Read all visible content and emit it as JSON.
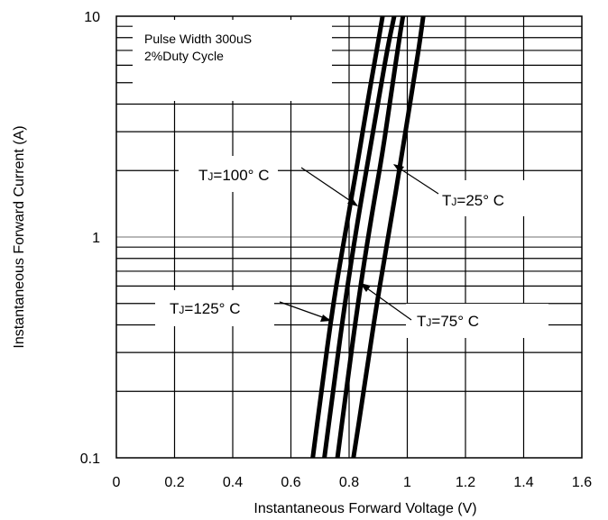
{
  "chart_data": {
    "type": "line",
    "xlabel": "Instantaneous Forward Voltage (V)",
    "ylabel": "Instantaneous Forward Current (A)",
    "xlim": [
      0,
      1.6
    ],
    "ylim": [
      0.1,
      10
    ],
    "yscale": "log",
    "grid": true,
    "x_ticks": [
      "0",
      "0.2",
      "0.4",
      "0.6",
      "0.8",
      "1",
      "1.2",
      "1.4",
      "1.6"
    ],
    "y_ticks": [
      "0.1",
      "1",
      "10"
    ],
    "note_lines": [
      "Pulse Width 300uS",
      "2%Duty Cycle"
    ],
    "series": [
      {
        "name": "TJ=125° C",
        "label_sub": "J",
        "label_pre": "T",
        "label_post": "=125° C",
        "x": [
          0.675,
          0.705,
          0.745,
          0.79,
          0.83,
          0.865,
          0.895,
          0.915
        ],
        "y": [
          0.1,
          0.2,
          0.5,
          1.1,
          2.2,
          4.2,
          7.0,
          10
        ]
      },
      {
        "name": "TJ=100° C",
        "label_sub": "J",
        "label_pre": "T",
        "label_post": "=100° C",
        "x": [
          0.715,
          0.745,
          0.785,
          0.83,
          0.87,
          0.905,
          0.935,
          0.955
        ],
        "y": [
          0.1,
          0.2,
          0.5,
          1.2,
          2.4,
          4.5,
          7.5,
          10
        ]
      },
      {
        "name": "TJ=75° C",
        "label_sub": "J",
        "label_pre": "T",
        "label_post": "=75° C",
        "x": [
          0.76,
          0.79,
          0.83,
          0.875,
          0.915,
          0.945,
          0.97,
          0.985
        ],
        "y": [
          0.1,
          0.2,
          0.5,
          1.2,
          2.4,
          4.5,
          7.5,
          10
        ]
      },
      {
        "name": "TJ=25° C",
        "label_sub": "J",
        "label_pre": "T",
        "label_post": "=25° C",
        "x": [
          0.815,
          0.85,
          0.895,
          0.94,
          0.98,
          1.015,
          1.04,
          1.055
        ],
        "y": [
          0.1,
          0.2,
          0.5,
          1.1,
          2.3,
          4.5,
          7.2,
          10
        ]
      }
    ]
  }
}
